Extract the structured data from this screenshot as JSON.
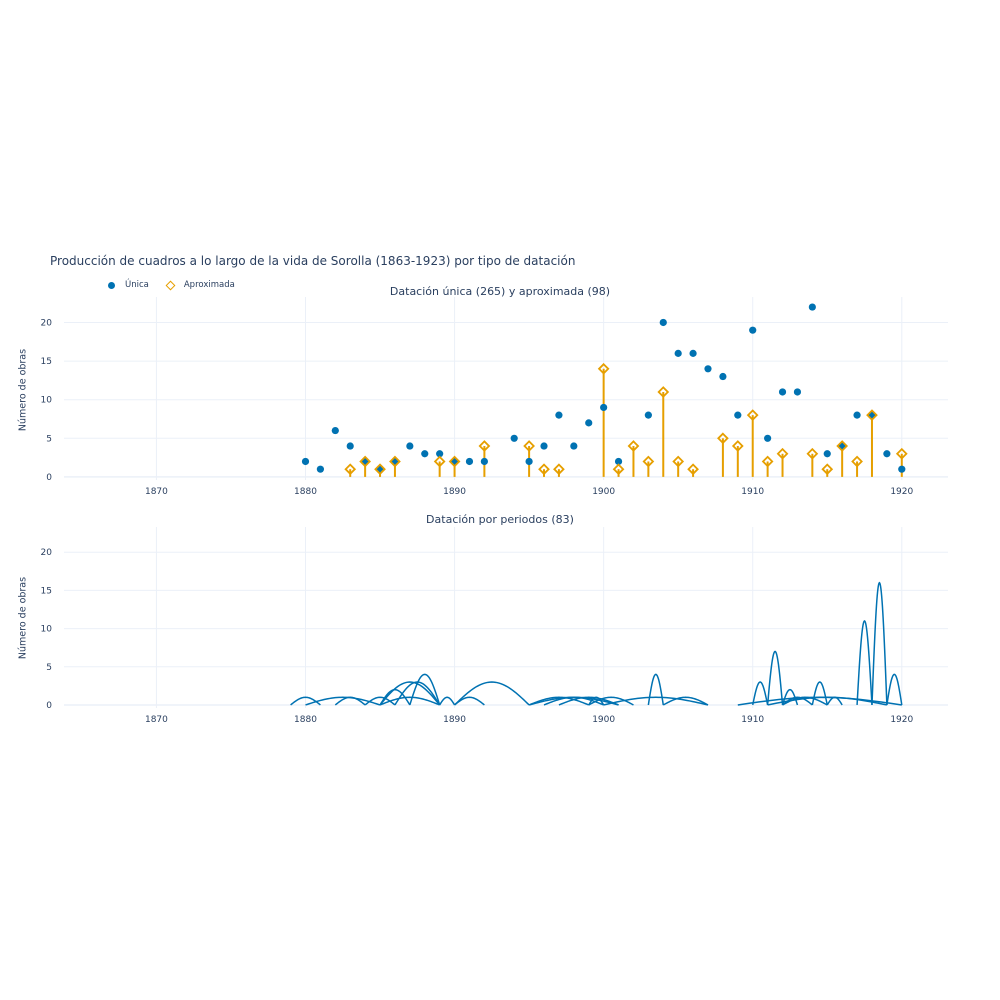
{
  "title": "Producción de cuadros a lo largo de la vida de Sorolla (1863-1923) por tipo de datación",
  "legend": [
    {
      "label": "Única",
      "marker": "circle",
      "color": "#0072b2"
    },
    {
      "label": "Aproximada",
      "marker": "diamond-open",
      "color": "#e69f00"
    }
  ],
  "colors": {
    "unica": "#0072b2",
    "aproximada": "#e69f00",
    "periodos": "#0072b2",
    "grid": "#ebf0f8",
    "text": "#2a3f5f"
  },
  "chart_data": [
    {
      "type": "scatter",
      "title": "Datación única (265) y aproximada (98)",
      "xlabel": "",
      "ylabel": "Número de obras",
      "xlim": [
        1863.8,
        1923.1
      ],
      "ylim": [
        -0.4,
        23.3
      ],
      "xticks": [
        1870,
        1880,
        1890,
        1900,
        1910,
        1920
      ],
      "yticks": [
        0,
        5,
        10,
        15,
        20
      ],
      "grid": true,
      "legend_position": "top-left",
      "series": [
        {
          "name": "Única",
          "mode": "markers",
          "x": [
            1880,
            1881,
            1882,
            1883,
            1884,
            1885,
            1886,
            1887,
            1888,
            1889,
            1890,
            1891,
            1892,
            1894,
            1895,
            1896,
            1897,
            1898,
            1899,
            1900,
            1901,
            1903,
            1904,
            1905,
            1906,
            1907,
            1908,
            1909,
            1910,
            1911,
            1912,
            1913,
            1914,
            1915,
            1916,
            1917,
            1918,
            1919,
            1920
          ],
          "y": [
            2,
            1,
            6,
            4,
            2,
            1,
            2,
            4,
            3,
            3,
            2,
            2,
            2,
            5,
            2,
            4,
            8,
            4,
            7,
            9,
            2,
            8,
            20,
            16,
            16,
            14,
            13,
            8,
            19,
            5,
            11,
            11,
            22,
            3,
            4,
            8,
            8,
            3,
            1
          ]
        },
        {
          "name": "Aproximada",
          "mode": "markers+stems",
          "x": [
            1883,
            1884,
            1885,
            1886,
            1889,
            1890,
            1892,
            1895,
            1896,
            1897,
            1900,
            1901,
            1902,
            1903,
            1904,
            1905,
            1906,
            1908,
            1909,
            1910,
            1911,
            1912,
            1914,
            1915,
            1916,
            1917,
            1918,
            1920
          ],
          "y": [
            1,
            2,
            1,
            2,
            2,
            2,
            4,
            4,
            1,
            1,
            14,
            1,
            4,
            2,
            11,
            2,
            1,
            5,
            4,
            8,
            2,
            3,
            3,
            1,
            4,
            2,
            8,
            3
          ]
        }
      ]
    },
    {
      "type": "line",
      "title": "Datación por periodos (83)",
      "xlabel": "",
      "ylabel": "Número de obras",
      "xlim": [
        1863.8,
        1923.1
      ],
      "ylim": [
        -0.4,
        23.3
      ],
      "xticks": [
        1870,
        1880,
        1890,
        1900,
        1910,
        1920
      ],
      "yticks": [
        0,
        5,
        10,
        15,
        20
      ],
      "grid": true,
      "series": [
        {
          "name": "Periodos",
          "description": "Each arc spans a dating period [start, end] with height = number of works",
          "arcs": [
            [
              1879,
              1881,
              1
            ],
            [
              1880,
              1885,
              1
            ],
            [
              1882,
              1884,
              1
            ],
            [
              1884,
              1886,
              1
            ],
            [
              1885,
              1887,
              2
            ],
            [
              1885,
              1889,
              3
            ],
            [
              1885,
              1889,
              1
            ],
            [
              1886,
              1889,
              3
            ],
            [
              1887,
              1889,
              4
            ],
            [
              1889,
              1890,
              1
            ],
            [
              1890,
              1892,
              1
            ],
            [
              1890,
              1895,
              3
            ],
            [
              1895,
              1899,
              1
            ],
            [
              1896,
              1900,
              1
            ],
            [
              1897,
              1901,
              1
            ],
            [
              1895,
              1901,
              1
            ],
            [
              1899,
              1900,
              1
            ],
            [
              1899,
              1902,
              1
            ],
            [
              1900,
              1907,
              1
            ],
            [
              1903,
              1904,
              4
            ],
            [
              1904,
              1907,
              1
            ],
            [
              1909,
              1920,
              1
            ],
            [
              1910,
              1911,
              3
            ],
            [
              1911,
              1912,
              7
            ],
            [
              1912,
              1913,
              2
            ],
            [
              1912,
              1914,
              1
            ],
            [
              1912,
              1915,
              1
            ],
            [
              1914,
              1915,
              3
            ],
            [
              1915,
              1916,
              1
            ],
            [
              1917,
              1918,
              11
            ],
            [
              1918,
              1919,
              16
            ],
            [
              1919,
              1920,
              4
            ],
            [
              1911,
              1919,
              1
            ]
          ]
        }
      ]
    }
  ]
}
